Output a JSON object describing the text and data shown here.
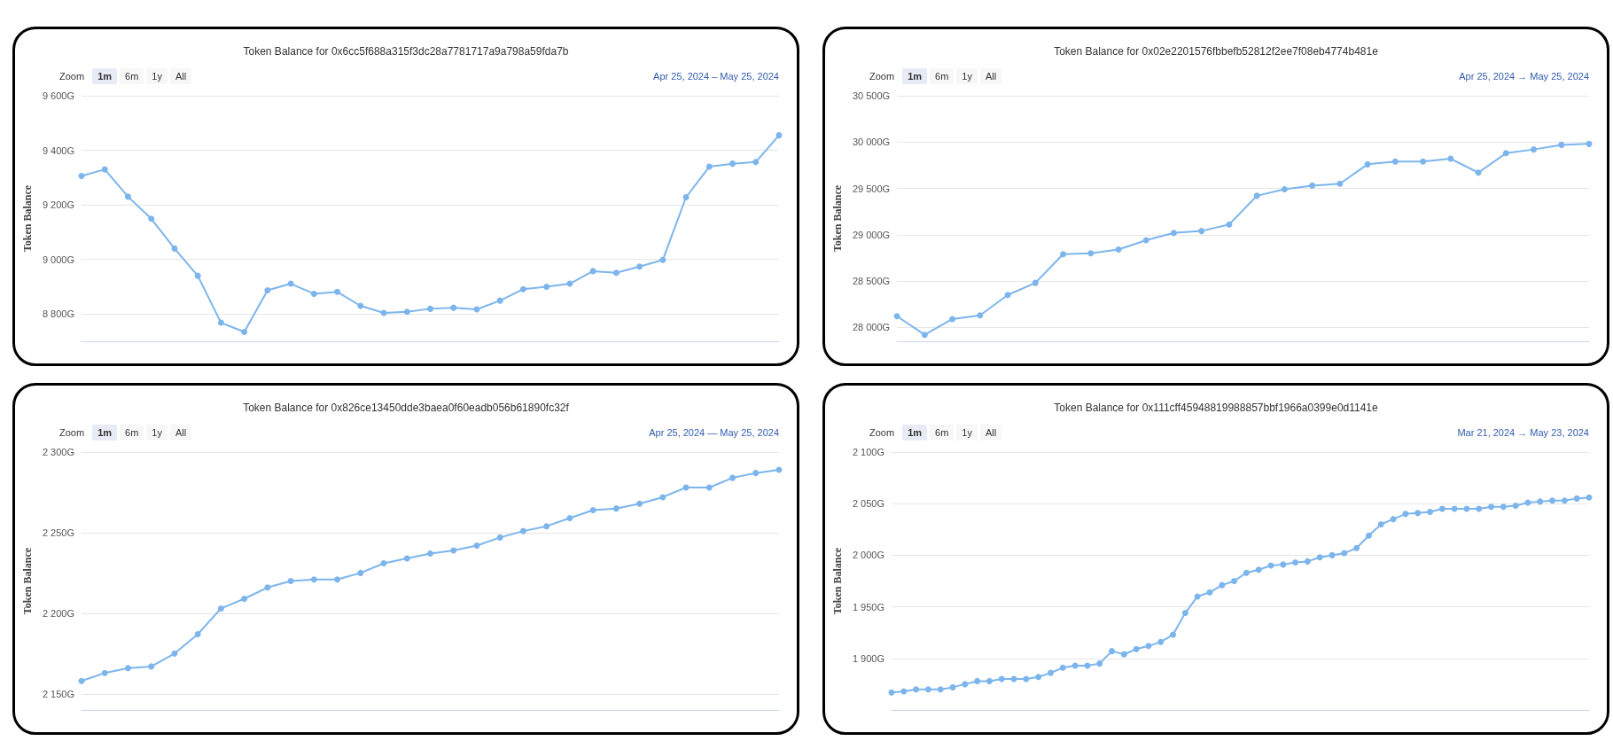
{
  "chart_data": [
    {
      "type": "line",
      "title": "Token Balance for 0x6cc5f688a315f3dc28a7781717a9a798a59fda7b",
      "ylabel": "Token Balance",
      "annotations": [
        "Zoom",
        "1m",
        "6m",
        "1y",
        "All",
        "Apr 25, 2024  –  May 25, 2024"
      ],
      "categories": [
        null,
        null,
        null,
        null,
        null,
        null,
        null,
        null,
        null,
        null,
        null,
        null,
        null,
        null,
        null,
        null,
        null,
        null,
        null,
        null,
        null,
        null,
        null,
        null,
        null,
        null,
        null,
        null,
        null,
        null,
        null
      ],
      "values": [
        9306,
        9330,
        9230,
        9149,
        9040,
        8940,
        8768,
        8734,
        8887,
        8911,
        8874,
        8881,
        8830,
        8804,
        8808,
        8819,
        8823,
        8817,
        8849,
        8891,
        8900,
        8911,
        8957,
        8951,
        8974,
        8998,
        9228,
        9340,
        9351,
        9357,
        9455
      ],
      "color": "#7cb5ec",
      "ylim": [
        8700,
        9600
      ],
      "yticks": [
        {
          "value": 8800,
          "label": "8 800G"
        },
        {
          "value": 9000,
          "label": "9 000G"
        },
        {
          "value": 9200,
          "label": "9 200G"
        },
        {
          "value": 9400,
          "label": "9 400G"
        },
        {
          "value": 9600,
          "label": "9 600G"
        }
      ],
      "grid": "y",
      "marker": "circle",
      "line_style": "solid",
      "tick_labels": "y"
    },
    {
      "type": "line",
      "title": "Token Balance for 0x02e2201576fbbefb52812f2ee7f08eb4774b481e",
      "ylabel": "Token Balance",
      "annotations": [
        "Zoom",
        "1m",
        "6m",
        "1y",
        "All",
        "Apr 25, 2024  →  May 25, 2024"
      ],
      "categories": [
        null,
        null,
        null,
        null,
        null,
        null,
        null,
        null,
        null,
        null,
        null,
        null,
        null,
        null,
        null,
        null,
        null,
        null,
        null,
        null,
        null,
        null,
        null,
        null,
        null,
        null
      ],
      "values": [
        28120,
        27920,
        28090,
        28130,
        28350,
        28480,
        28790,
        28800,
        28840,
        28940,
        29020,
        29040,
        29110,
        29420,
        29490,
        29530,
        29550,
        29760,
        29790,
        29790,
        29820,
        29670,
        29880,
        29920,
        29970,
        29980
      ],
      "color": "#7cb5ec",
      "ylim": [
        27850,
        30500
      ],
      "yticks": [
        {
          "value": 28000,
          "label": "28 000G"
        },
        {
          "value": 28500,
          "label": "28 500G"
        },
        {
          "value": 29000,
          "label": "29 000G"
        },
        {
          "value": 29500,
          "label": "29 500G"
        },
        {
          "value": 30000,
          "label": "30 000G"
        },
        {
          "value": 30500,
          "label": "30 500G"
        }
      ],
      "grid": "y",
      "marker": "circle",
      "line_style": "solid",
      "tick_labels": "y"
    },
    {
      "type": "line",
      "title": "Token Balance for 0x826ce13450dde3baea0f60eadb056b61890fc32f",
      "ylabel": "Token Balance",
      "annotations": [
        "Zoom",
        "1m",
        "6m",
        "1y",
        "All",
        "Apr 25, 2024  —  May 25, 2024"
      ],
      "categories": [
        null,
        null,
        null,
        null,
        null,
        null,
        null,
        null,
        null,
        null,
        null,
        null,
        null,
        null,
        null,
        null,
        null,
        null,
        null,
        null,
        null,
        null,
        null,
        null,
        null,
        null,
        null,
        null,
        null,
        null,
        null
      ],
      "values": [
        2158,
        2163,
        2166,
        2167,
        2175,
        2187,
        2203,
        2209,
        2216,
        2220,
        2221,
        2221,
        2225,
        2231,
        2234,
        2237,
        2239,
        2242,
        2247,
        2251,
        2254,
        2259,
        2264,
        2265,
        2268,
        2272,
        2278,
        2278,
        2284,
        2287,
        2289
      ],
      "color": "#7cb5ec",
      "ylim": [
        2140,
        2300
      ],
      "yticks": [
        {
          "value": 2150,
          "label": "2 150G"
        },
        {
          "value": 2200,
          "label": "2 200G"
        },
        {
          "value": 2250,
          "label": "2 250G"
        },
        {
          "value": 2300,
          "label": "2 300G"
        }
      ],
      "grid": "y",
      "marker": "circle",
      "line_style": "solid",
      "tick_labels": "y"
    },
    {
      "type": "line",
      "title": "Token Balance for 0x111cff45948819988857bbf1966a0399e0d1141e",
      "ylabel": "Token Balance",
      "annotations": [
        "Zoom",
        "1m",
        "6m",
        "1y",
        "All",
        "Mar 21, 2024  →  May 23, 2024"
      ],
      "categories": [
        null,
        null,
        null,
        null,
        null,
        null,
        null,
        null,
        null,
        null,
        null,
        null,
        null,
        null,
        null,
        null,
        null,
        null,
        null,
        null,
        null,
        null,
        null,
        null,
        null,
        null,
        null,
        null,
        null,
        null,
        null,
        null,
        null,
        null,
        null,
        null,
        null,
        null,
        null,
        null,
        null,
        null,
        null,
        null,
        null,
        null,
        null,
        null,
        null,
        null,
        null,
        null,
        null,
        null,
        null,
        null,
        null,
        null
      ],
      "values": [
        1867,
        1868,
        1870,
        1870,
        1870,
        1872,
        1875,
        1878,
        1878,
        1880,
        1880,
        1880,
        1882,
        1886,
        1891,
        1893,
        1893,
        1895,
        1907,
        1904,
        1909,
        1912,
        1916,
        1923,
        1944,
        1960,
        1964,
        1971,
        1975,
        1983,
        1986,
        1990,
        1991,
        1993,
        1994,
        1998,
        2000,
        2002,
        2007,
        2019,
        2030,
        2035,
        2040,
        2041,
        2042,
        2045,
        2045,
        2045,
        2045,
        2047,
        2047,
        2048,
        2051,
        2052,
        2053,
        2053,
        2055,
        2056
      ],
      "color": "#7cb5ec",
      "ylim": [
        1850,
        2100
      ],
      "yticks": [
        {
          "value": 1900,
          "label": "1 900G"
        },
        {
          "value": 1950,
          "label": "1 950G"
        },
        {
          "value": 2000,
          "label": "2 000G"
        },
        {
          "value": 2050,
          "label": "2 050G"
        },
        {
          "value": 2100,
          "label": "2 100G"
        }
      ],
      "grid": "y",
      "marker": "circle",
      "line_style": "solid",
      "tick_labels": "y"
    }
  ]
}
